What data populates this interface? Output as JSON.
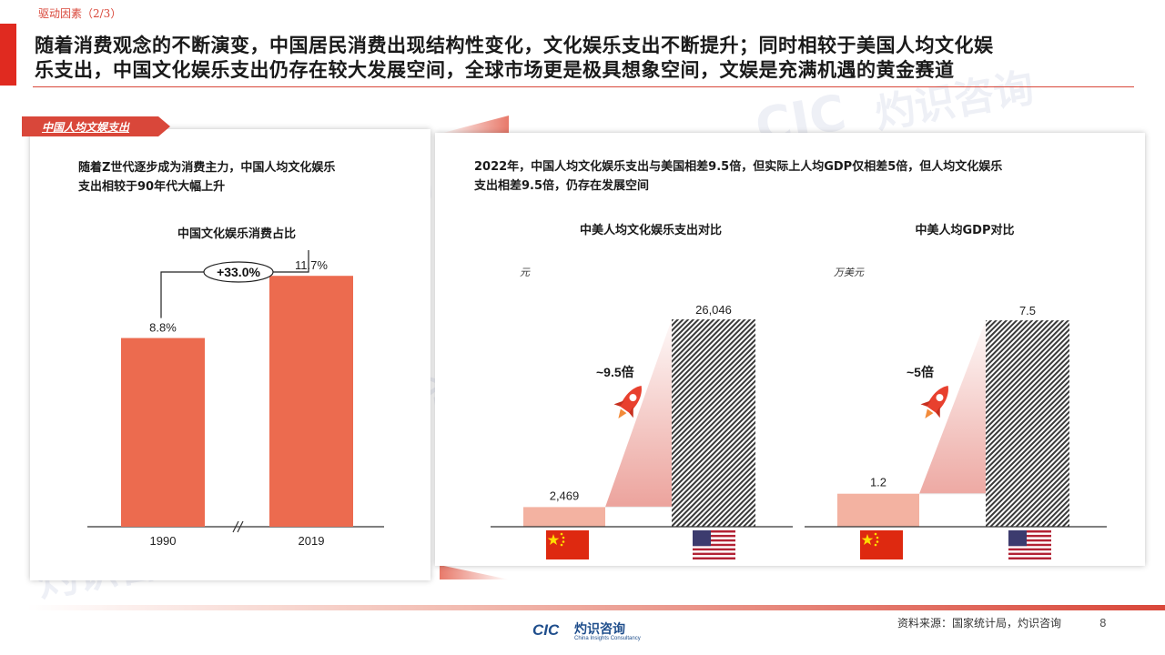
{
  "breadcrumb": "驱动因素（2/3）",
  "headline_line1": "随着消费观念的不断演变，中国居民消费出现结构性变化，文化娱乐支出不断提升；同时相较于美国人均文化娱",
  "headline_line2": "乐支出，中国文化娱乐支出仍存在较大发展空间，全球市场更是极具想象空间，文娱是充满机遇的黄金赛道",
  "section_tag": "中国人均文娱支出",
  "left_panel": {
    "desc_line1": "随着Z世代逐步成为消费主力，中国人均文化娱乐",
    "desc_line2": "支出相较于90年代大幅上升",
    "growth_label": "+33.0%"
  },
  "right_panel": {
    "desc_line1": "2022年，中国人均文化娱乐支出与美国相差9.5倍，但实际上人均GDP仅相差5倍，但人均文化娱乐",
    "desc_line2": "支出相差9.5倍，仍存在发展空间",
    "chart1_multiplier": "~9.5倍",
    "chart2_multiplier": "~5倍",
    "chart1_unit": "元",
    "chart2_unit": "万美元"
  },
  "icons": [
    "rocket-icon",
    "china-flag-icon",
    "usa-flag-icon",
    "axis-break-icon"
  ],
  "colors": {
    "accent": "#d9473a",
    "china_bar": "#ec6b4f",
    "china_bar_light": "#f3b2a1",
    "usa_hatch": "#3a3a3a"
  },
  "chart_data": [
    {
      "type": "bar",
      "title": "中国文化娱乐消费占比",
      "categories": [
        "1990",
        "2019"
      ],
      "values": [
        8.8,
        11.7
      ],
      "value_labels": [
        "8.8%",
        "11.7%"
      ],
      "ylim": [
        0,
        14
      ]
    },
    {
      "type": "bar",
      "title": "中美人均文化娱乐支出对比",
      "ylabel": "元",
      "categories": [
        "China",
        "USA"
      ],
      "values": [
        2469,
        26046
      ],
      "value_labels": [
        "2,469",
        "26,046"
      ],
      "ylim": [
        0,
        28000
      ]
    },
    {
      "type": "bar",
      "title": "中美人均GDP对比",
      "ylabel": "万美元",
      "categories": [
        "China",
        "USA"
      ],
      "values": [
        1.2,
        7.5
      ],
      "value_labels": [
        "1.2",
        "7.5"
      ],
      "ylim": [
        0,
        8.1
      ]
    }
  ],
  "footer": {
    "source": "资料来源：国家统计局，灼识咨询",
    "page_number": "8",
    "logo_text": "灼识咨询",
    "logo_sub": "China Insights Consultancy",
    "logo_mark": "CIC"
  },
  "watermark": {
    "cn": "灼识咨询",
    "en": "China Insights Consultancy",
    "mark": "CIC"
  }
}
